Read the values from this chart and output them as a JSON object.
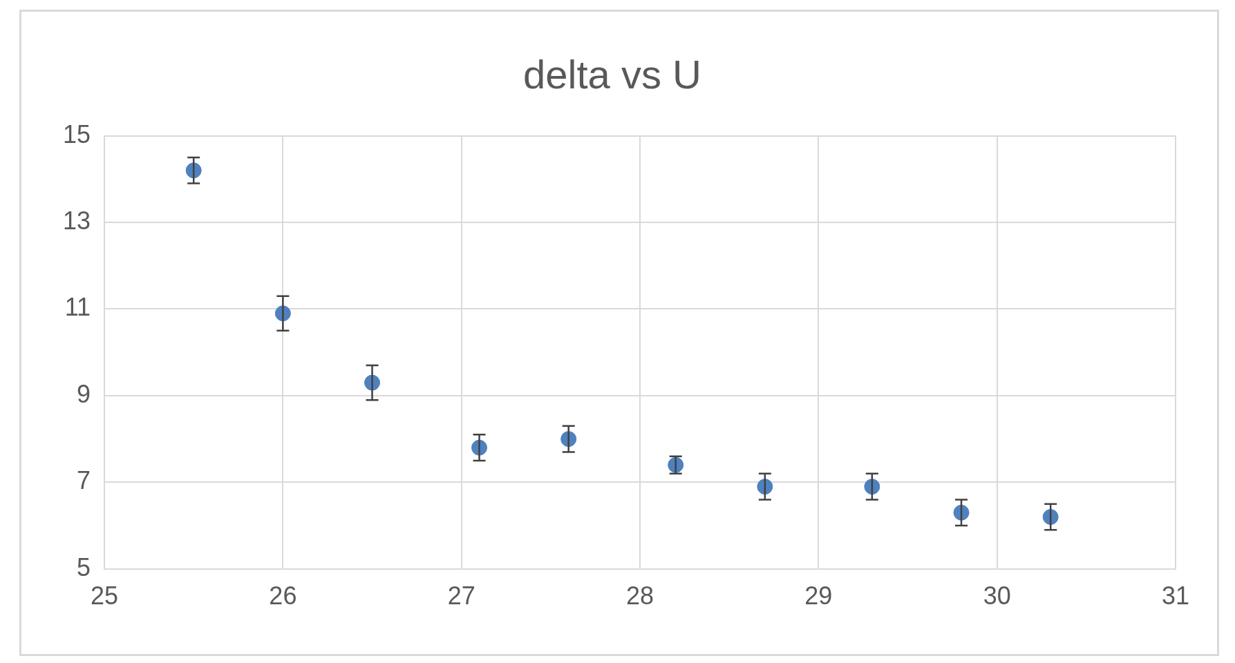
{
  "chart_data": {
    "type": "scatter",
    "title": "delta vs U",
    "x": [
      25.5,
      26.0,
      26.5,
      27.1,
      27.6,
      28.2,
      28.7,
      29.3,
      29.8,
      30.3
    ],
    "series": [
      {
        "color": "#4f81bd",
        "values": [
          14.2,
          10.9,
          9.3,
          7.8,
          8.0,
          7.4,
          6.9,
          6.9,
          6.3,
          6.2
        ],
        "errors": [
          0.3,
          0.4,
          0.4,
          0.3,
          0.3,
          0.2,
          0.3,
          0.3,
          0.3,
          0.3
        ]
      }
    ],
    "xlim": [
      25,
      31
    ],
    "xticks": [
      25,
      26,
      27,
      28,
      29,
      30,
      31
    ],
    "ylim": [
      5,
      15
    ],
    "yticks": [
      5,
      7,
      9,
      11,
      13,
      15
    ],
    "grid": true,
    "legend": false,
    "marker": "circle"
  }
}
